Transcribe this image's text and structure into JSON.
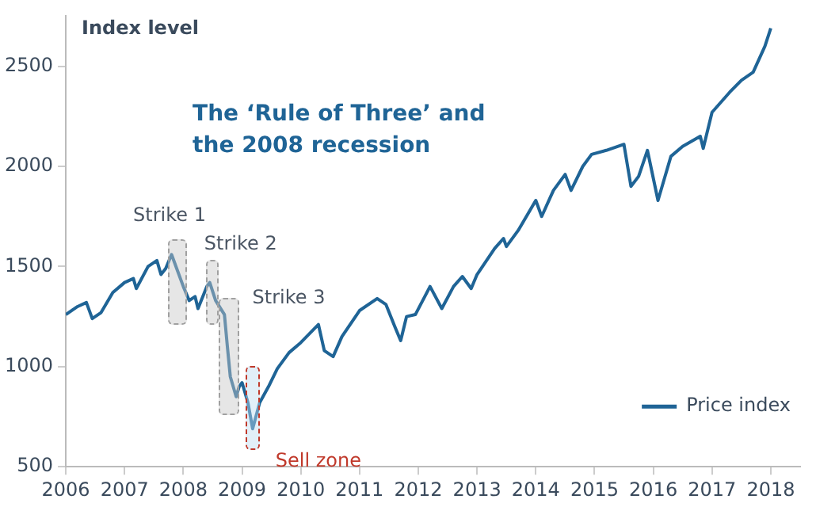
{
  "chart_data": {
    "type": "line",
    "title": "The ‘Rule of Three’ and the 2008 recession",
    "ylabel": "Index level",
    "x": [
      2006.0,
      2006.2,
      2006.35,
      2006.45,
      2006.6,
      2006.8,
      2007.0,
      2007.15,
      2007.2,
      2007.4,
      2007.55,
      2007.62,
      2007.7,
      2007.8,
      2007.9,
      2008.0,
      2008.1,
      2008.2,
      2008.25,
      2008.4,
      2008.45,
      2008.55,
      2008.7,
      2008.75,
      2008.8,
      2008.9,
      2008.95,
      2009.0,
      2009.1,
      2009.18,
      2009.3,
      2009.45,
      2009.6,
      2009.8,
      2010.0,
      2010.3,
      2010.4,
      2010.55,
      2010.7,
      2011.0,
      2011.3,
      2011.45,
      2011.6,
      2011.7,
      2011.8,
      2011.95,
      2012.2,
      2012.4,
      2012.6,
      2012.75,
      2012.9,
      2013.0,
      2013.3,
      2013.45,
      2013.5,
      2013.7,
      2014.0,
      2014.1,
      2014.3,
      2014.5,
      2014.6,
      2014.8,
      2014.95,
      2015.2,
      2015.5,
      2015.62,
      2015.75,
      2015.9,
      2016.08,
      2016.3,
      2016.5,
      2016.8,
      2016.85,
      2017.0,
      2017.3,
      2017.5,
      2017.7,
      2017.9,
      2018.0
    ],
    "series": [
      {
        "name": "Price index",
        "color": "#1f6496",
        "values": [
          1260,
          1300,
          1320,
          1240,
          1270,
          1370,
          1420,
          1440,
          1390,
          1500,
          1530,
          1460,
          1490,
          1560,
          1480,
          1400,
          1330,
          1350,
          1290,
          1400,
          1420,
          1330,
          1260,
          1100,
          950,
          850,
          900,
          920,
          820,
          690,
          820,
          900,
          990,
          1070,
          1120,
          1210,
          1080,
          1050,
          1150,
          1280,
          1340,
          1310,
          1200,
          1130,
          1250,
          1260,
          1400,
          1290,
          1400,
          1450,
          1390,
          1460,
          1590,
          1640,
          1600,
          1680,
          1830,
          1750,
          1880,
          1960,
          1880,
          2000,
          2060,
          2080,
          2110,
          1900,
          1950,
          2080,
          1830,
          2050,
          2100,
          2150,
          2090,
          2270,
          2370,
          2430,
          2470,
          2600,
          2690
        ]
      }
    ],
    "xlim": [
      2006,
      2018.5
    ],
    "xticks": [
      2006,
      2007,
      2008,
      2009,
      2010,
      2011,
      2012,
      2013,
      2014,
      2015,
      2016,
      2017,
      2018
    ],
    "ylim": [
      500,
      2750
    ],
    "yticks": [
      500,
      1000,
      1500,
      2000,
      2500
    ],
    "grid": false,
    "legend": "bottom right",
    "marker": "none",
    "line_style": "solid",
    "bands": [
      {
        "axis": "x",
        "from": 2007.75,
        "to": 2008.05,
        "label": "Strike 1",
        "color": "#d9d9d9"
      },
      {
        "axis": "x",
        "from": 2008.38,
        "to": 2008.6,
        "label": "Strike 2",
        "color": "#d9d9d9"
      },
      {
        "axis": "x",
        "from": 2008.6,
        "to": 2008.96,
        "label": "Strike 3",
        "color": "#d9d9d9"
      },
      {
        "axis": "x",
        "from": 2009.05,
        "to": 2009.3,
        "label": "Sell zone",
        "color": "#c0392b"
      }
    ]
  }
}
